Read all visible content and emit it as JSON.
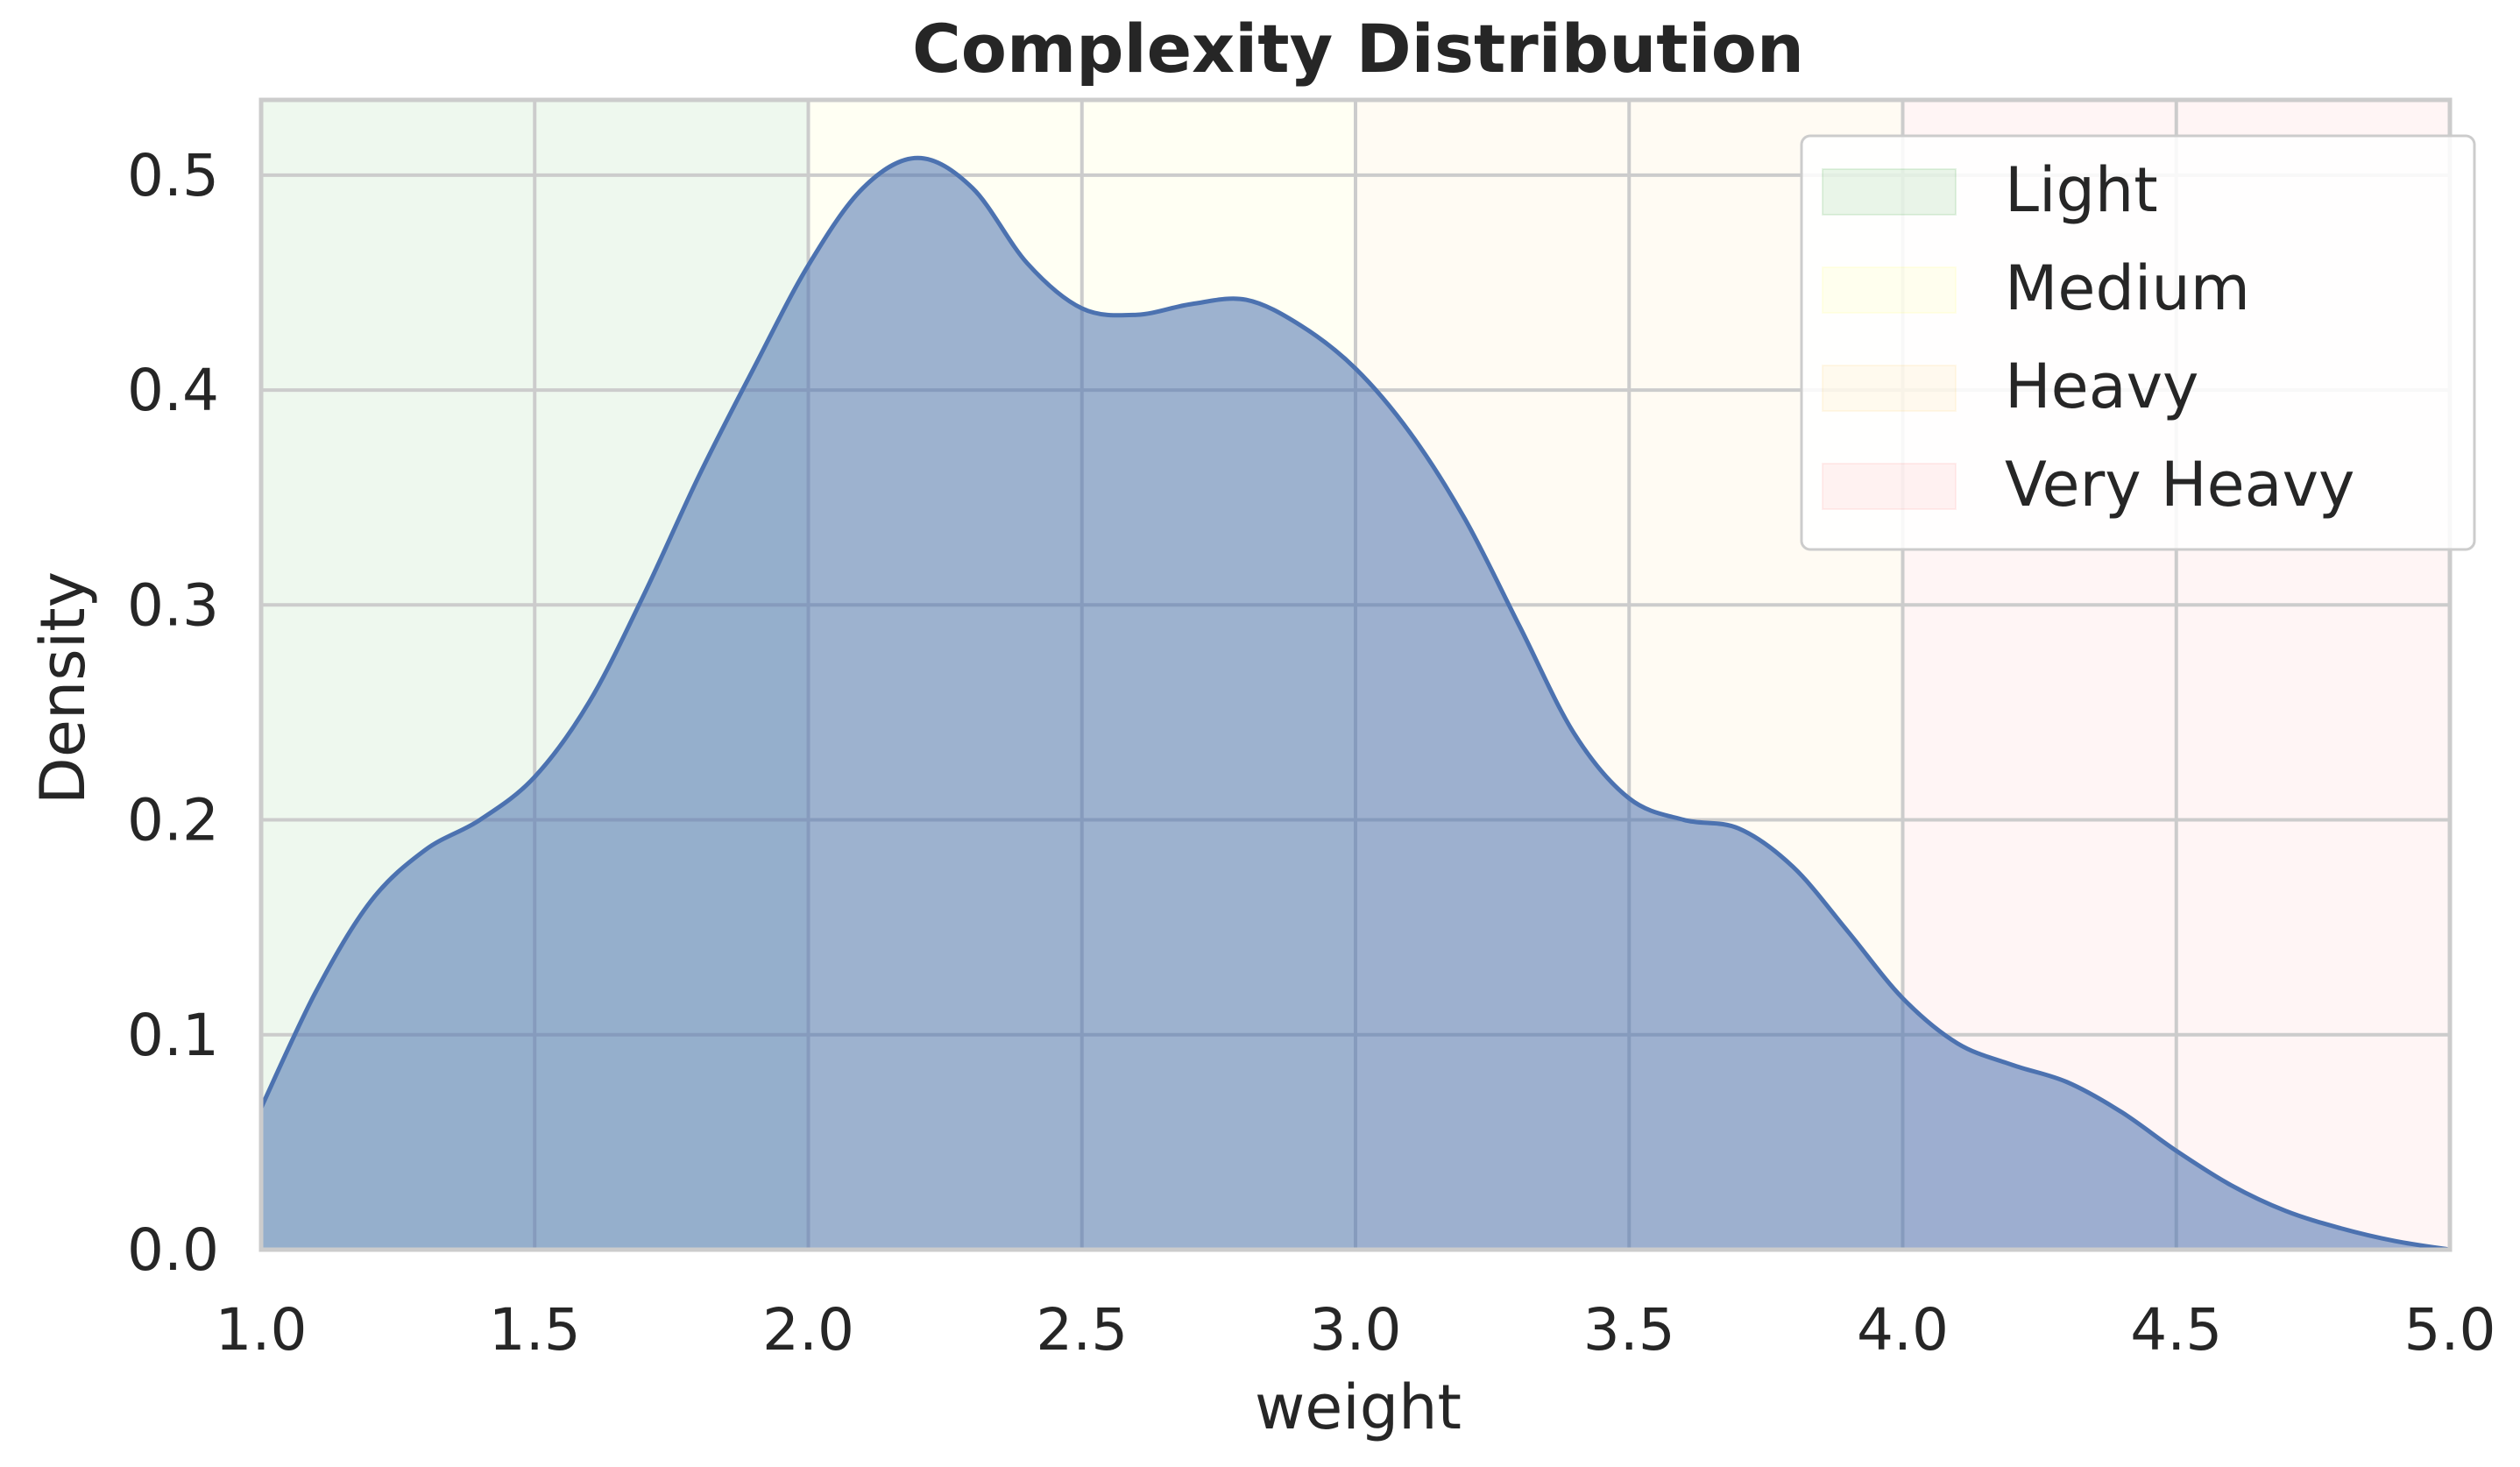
{
  "chart_data": {
    "type": "area",
    "title": "Complexity Distribution",
    "xlabel": "weight",
    "ylabel": "Density",
    "xlim": [
      1.0,
      5.0
    ],
    "ylim": [
      0.0,
      0.535
    ],
    "x_ticks": [
      1.0,
      1.5,
      2.0,
      2.5,
      3.0,
      3.5,
      4.0,
      4.5,
      5.0
    ],
    "x_tick_labels": [
      "1.0",
      "1.5",
      "2.0",
      "2.5",
      "3.0",
      "3.5",
      "4.0",
      "4.5",
      "5.0"
    ],
    "y_ticks": [
      0.0,
      0.1,
      0.2,
      0.3,
      0.4,
      0.5
    ],
    "y_tick_labels": [
      "0.0",
      "0.1",
      "0.2",
      "0.3",
      "0.4",
      "0.5"
    ],
    "grid": true,
    "legend_position": "top-right",
    "regions": [
      {
        "name": "Light",
        "x_start": 1.0,
        "x_end": 2.0,
        "color": "#2ca02c"
      },
      {
        "name": "Medium",
        "x_start": 2.0,
        "x_end": 3.0,
        "color": "#ffff66"
      },
      {
        "name": "Heavy",
        "x_start": 3.0,
        "x_end": 4.0,
        "color": "#ffcc66"
      },
      {
        "name": "Very Heavy",
        "x_start": 4.0,
        "x_end": 5.0,
        "color": "#ff8080"
      }
    ],
    "series": [
      {
        "color": "#4c72b0",
        "x": [
          1.0,
          1.1,
          1.2,
          1.3,
          1.4,
          1.5,
          1.6,
          1.7,
          1.8,
          1.9,
          2.0,
          2.1,
          2.2,
          2.3,
          2.4,
          2.5,
          2.6,
          2.7,
          2.8,
          2.9,
          3.0,
          3.1,
          3.2,
          3.3,
          3.4,
          3.5,
          3.6,
          3.7,
          3.8,
          3.9,
          4.0,
          4.1,
          4.2,
          4.3,
          4.4,
          4.5,
          4.6,
          4.7,
          4.8,
          4.9,
          5.0
        ],
        "y": [
          0.066,
          0.12,
          0.162,
          0.186,
          0.2,
          0.22,
          0.255,
          0.305,
          0.36,
          0.41,
          0.458,
          0.494,
          0.508,
          0.494,
          0.459,
          0.438,
          0.435,
          0.44,
          0.442,
          0.43,
          0.41,
          0.38,
          0.34,
          0.29,
          0.24,
          0.21,
          0.2,
          0.196,
          0.178,
          0.148,
          0.117,
          0.096,
          0.086,
          0.078,
          0.064,
          0.046,
          0.03,
          0.018,
          0.01,
          0.004,
          0.0
        ]
      }
    ]
  }
}
